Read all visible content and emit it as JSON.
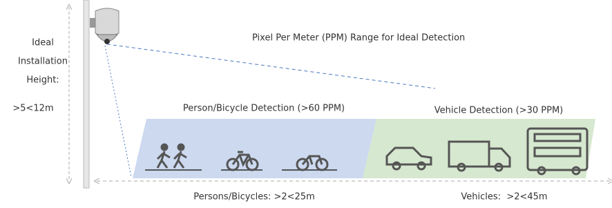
{
  "title": "Pixel Per Meter (PPM) Range for Ideal Detection",
  "installation": {
    "label_lines": [
      "Ideal",
      "Installation",
      "Height:"
    ],
    "value": ">5<12m"
  },
  "zones": [
    {
      "label": "Person/Bicycle Detection (>60 PPM)",
      "range": "Persons/Bicycles: >2<25m"
    },
    {
      "label": "Vehicle Detection (>30 PPM)",
      "range": "Vehicles:  >2<45m"
    }
  ]
}
